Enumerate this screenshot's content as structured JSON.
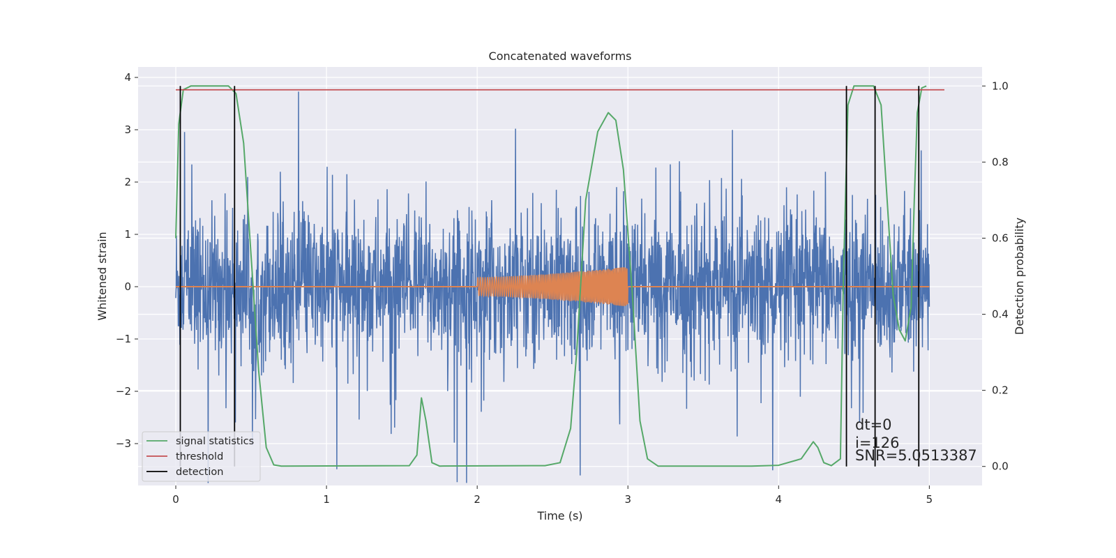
{
  "chart_data": {
    "type": "line",
    "title": "Concatenated waveforms",
    "xlabel": "Time (s)",
    "ylabel": "Whitened strain",
    "y2label": "Detection probability",
    "xlim": [
      -0.25,
      5.35
    ],
    "ylim": [
      -3.8,
      4.2
    ],
    "y2lim": [
      -0.05,
      1.05
    ],
    "x_ticks": [
      0,
      1,
      2,
      3,
      4,
      5
    ],
    "y_ticks": [
      -3,
      -2,
      -1,
      0,
      1,
      2,
      3,
      4
    ],
    "y2_ticks": [
      0.0,
      0.2,
      0.4,
      0.6,
      0.8,
      1.0
    ],
    "x_tick_labels": [
      "0",
      "1",
      "2",
      "3",
      "4",
      "5"
    ],
    "y_tick_labels": [
      "−3",
      "−2",
      "−1",
      "0",
      "1",
      "2",
      "3",
      "4"
    ],
    "y2_tick_labels": [
      "0.0",
      "0.2",
      "0.4",
      "0.6",
      "0.8",
      "1.0"
    ],
    "grid": true,
    "legend_position": "bottom-left",
    "series": [
      {
        "kind": "noise",
        "axis": "left",
        "color": "#4c72b0",
        "x_range": [
          0,
          5
        ],
        "typical_amplitude": 1.4,
        "peak_amplitude": 3.8
      },
      {
        "kind": "chirp",
        "axis": "left",
        "color": "#dd8452",
        "x_range": [
          0,
          5
        ],
        "active_range": [
          2.0,
          3.0
        ],
        "amplitude_start": 0.18,
        "amplitude_end": 0.38
      },
      {
        "name": "signal statistics",
        "axis": "right",
        "color": "#55a868",
        "points": [
          [
            0.0,
            0.6
          ],
          [
            0.02,
            0.9
          ],
          [
            0.05,
            0.99
          ],
          [
            0.1,
            1.0
          ],
          [
            0.35,
            1.0
          ],
          [
            0.4,
            0.98
          ],
          [
            0.45,
            0.85
          ],
          [
            0.5,
            0.55
          ],
          [
            0.55,
            0.25
          ],
          [
            0.6,
            0.05
          ],
          [
            0.65,
            0.004
          ],
          [
            0.7,
            0.001
          ],
          [
            1.55,
            0.002
          ],
          [
            1.6,
            0.03
          ],
          [
            1.63,
            0.18
          ],
          [
            1.66,
            0.12
          ],
          [
            1.7,
            0.01
          ],
          [
            1.75,
            0.001
          ],
          [
            2.45,
            0.002
          ],
          [
            2.55,
            0.01
          ],
          [
            2.62,
            0.1
          ],
          [
            2.66,
            0.3
          ],
          [
            2.72,
            0.7
          ],
          [
            2.8,
            0.88
          ],
          [
            2.87,
            0.93
          ],
          [
            2.92,
            0.91
          ],
          [
            2.97,
            0.78
          ],
          [
            3.03,
            0.45
          ],
          [
            3.08,
            0.12
          ],
          [
            3.13,
            0.02
          ],
          [
            3.2,
            0.001
          ],
          [
            3.82,
            0.001
          ],
          [
            4.0,
            0.003
          ],
          [
            4.15,
            0.02
          ],
          [
            4.23,
            0.065
          ],
          [
            4.26,
            0.05
          ],
          [
            4.3,
            0.01
          ],
          [
            4.35,
            0.002
          ],
          [
            4.41,
            0.02
          ],
          [
            4.43,
            0.5
          ],
          [
            4.46,
            0.95
          ],
          [
            4.5,
            1.0
          ],
          [
            4.63,
            1.0
          ],
          [
            4.68,
            0.95
          ],
          [
            4.72,
            0.7
          ],
          [
            4.76,
            0.45
          ],
          [
            4.8,
            0.36
          ],
          [
            4.84,
            0.33
          ],
          [
            4.88,
            0.42
          ],
          [
            4.9,
            0.7
          ],
          [
            4.92,
            0.93
          ],
          [
            4.95,
            0.995
          ],
          [
            4.98,
            1.0
          ]
        ]
      },
      {
        "name": "threshold",
        "axis": "right",
        "color": "#c44e52",
        "value": 0.99,
        "x_range": [
          0,
          5.1
        ]
      },
      {
        "name": "detection",
        "axis": "right",
        "color": "#000000",
        "x": [
          0.03,
          0.39,
          4.45,
          4.64,
          4.93
        ],
        "y_range": [
          0,
          1
        ]
      }
    ],
    "annotation_lines": [
      "dt=0",
      "i=126",
      "SNR=5.0513387"
    ]
  }
}
